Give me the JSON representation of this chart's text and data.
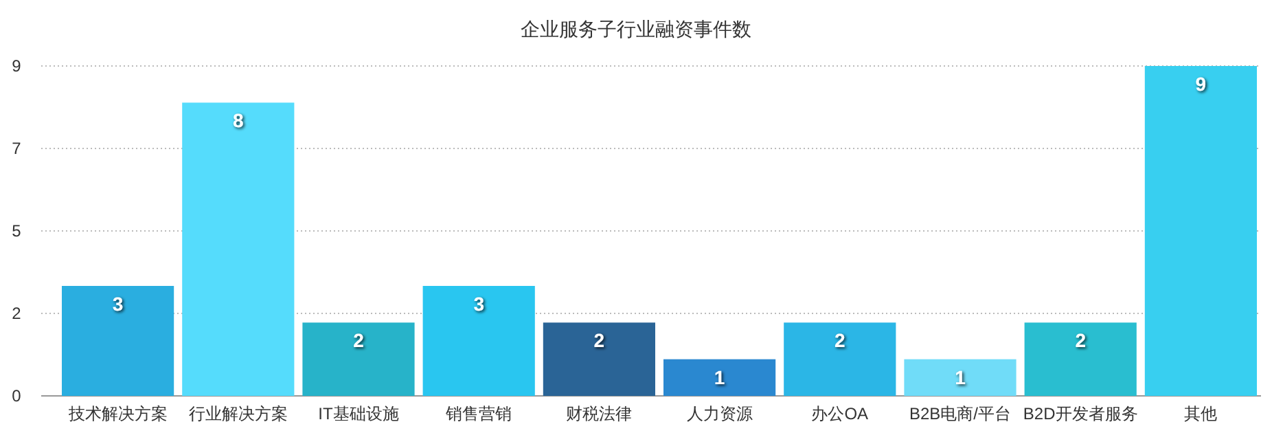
{
  "chart_data": {
    "type": "bar",
    "title": "企业服务子行业融资事件数",
    "categories": [
      "技术解决方案",
      "行业解决方案",
      "IT基础设施",
      "销售营销",
      "财税法律",
      "人力资源",
      "办公OA",
      "B2B电商/平台",
      "B2D开发者服务",
      "其他"
    ],
    "values": [
      3,
      8,
      2,
      3,
      2,
      1,
      2,
      1,
      2,
      9
    ],
    "colors": [
      "#2aaee0",
      "#55dcfc",
      "#27b3c9",
      "#29c6f0",
      "#2a6496",
      "#2a88d0",
      "#2bb6e6",
      "#70dcf8",
      "#29bed0",
      "#38cff0"
    ],
    "ylim": [
      0,
      9
    ],
    "yticks": [
      0,
      {
        "value": 2.25,
        "label": "2"
      },
      {
        "value": 4.5,
        "label": "5"
      },
      {
        "value": 6.75,
        "label": "7"
      },
      9
    ],
    "grid": "y",
    "data_labels": true
  }
}
